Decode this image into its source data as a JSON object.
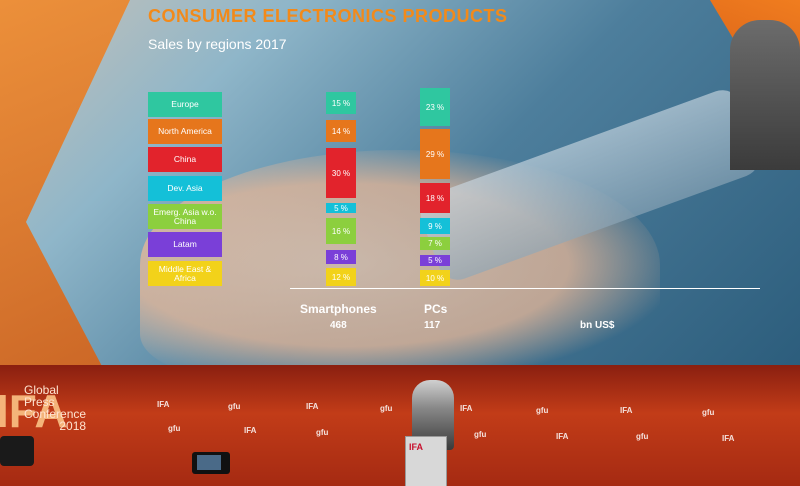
{
  "slide": {
    "title": "CONSUMER ELECTRONICS PRODUCTS",
    "subtitle": "Sales by regions 2017"
  },
  "legend": [
    {
      "label": "Europe",
      "color": "#2fc7a0"
    },
    {
      "label": "North America",
      "color": "#e6761c"
    },
    {
      "label": "China",
      "color": "#e2232c"
    },
    {
      "label": "Dev. Asia",
      "color": "#14c0d8"
    },
    {
      "label": "Emerg. Asia w.o. China",
      "color": "#8ccf3e"
    },
    {
      "label": "Latam",
      "color": "#7a3fd8"
    },
    {
      "label": "Middle East & Africa",
      "color": "#f2d21a"
    }
  ],
  "chart_data": {
    "type": "bar",
    "categories": [
      "Smartphones",
      "PCs"
    ],
    "totals": [
      "468",
      "117"
    ],
    "unit": "bn US$",
    "series": [
      {
        "name": "Europe",
        "labels": [
          "15 %",
          "23 %"
        ]
      },
      {
        "name": "North America",
        "labels": [
          "14 %",
          "29 %"
        ]
      },
      {
        "name": "China",
        "labels": [
          "30 %",
          "18 %"
        ]
      },
      {
        "name": "Dev. Asia",
        "labels": [
          "5 %",
          "9 %"
        ]
      },
      {
        "name": "Emerg. Asia w.o. China",
        "labels": [
          "16 %",
          "7 %"
        ]
      },
      {
        "name": "Latam",
        "labels": [
          "8 %",
          "5 %"
        ]
      },
      {
        "name": "Middle East & Africa",
        "labels": [
          "12 %",
          "10 %"
        ]
      }
    ]
  },
  "event": {
    "ifa": "IFA",
    "name_line1": "Global",
    "name_line2": "Press",
    "name_line3": "Conference",
    "year": "2018"
  },
  "sponsors": {
    "ifa": "IFA",
    "gfu": "gfu"
  },
  "podium": {
    "logo": "IFA"
  }
}
